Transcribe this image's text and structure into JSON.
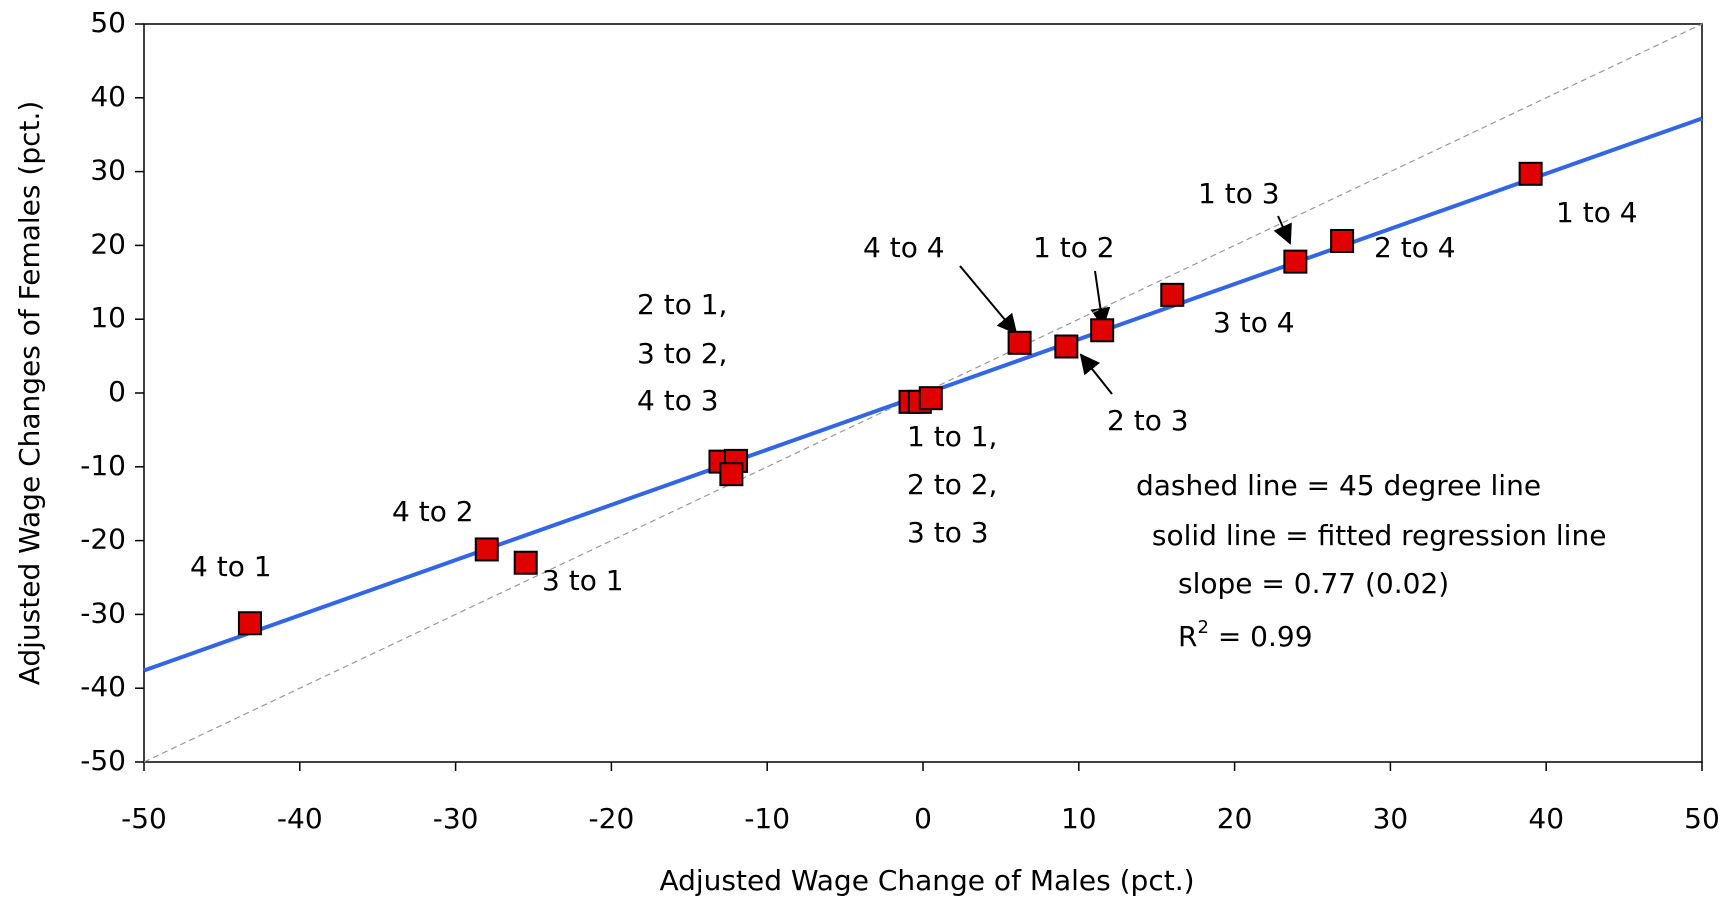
{
  "chart_data": {
    "type": "scatter",
    "x_label": "Adjusted Wage Change of Males (pct.)",
    "y_label": "Adjusted Wage Changes of Females (pct.)",
    "xlim": [
      -50,
      50
    ],
    "xticks": [
      -50,
      -40,
      -30,
      -20,
      -10,
      0,
      10,
      20,
      30,
      40,
      50
    ],
    "ylim": [
      -50,
      50
    ],
    "yticks": [
      -50,
      -40,
      -30,
      -20,
      -10,
      0,
      10,
      20,
      30,
      40,
      50
    ],
    "series": [
      {
        "color": "#e00000",
        "x": [
          -43.2,
          -28,
          -25.5,
          -13,
          -12,
          -12.3,
          -0.8,
          -0.2,
          0.5,
          6.2,
          9.2,
          11.5,
          16,
          23.9,
          26.9,
          39
        ],
        "values": [
          -31.2,
          -21.2,
          -23,
          -9.3,
          -9.2,
          -11,
          -1.2,
          -1.2,
          -0.7,
          6.8,
          6.3,
          8.5,
          13.3,
          17.8,
          20.6,
          29.7
        ]
      }
    ],
    "lines": [
      {
        "color": "#999999",
        "style": "dashed",
        "x": [
          -50,
          50
        ],
        "values": [
          -50,
          50
        ]
      },
      {
        "color": "#3366e6",
        "style": "solid",
        "x": [
          -50,
          50
        ],
        "values": [
          -37.6,
          37.2
        ]
      }
    ],
    "annotations": [
      "4 to 1",
      "4 to 2",
      "3 to 1",
      "2 to 1,",
      "3 to 2,",
      "4 to 3",
      "1 to 1,",
      "2 to 2,",
      "3 to 3",
      "4 to 4",
      "1 to 2",
      "2 to 3",
      "3 to 4",
      "1 to 3",
      "2 to 4",
      "1 to 4",
      "dashed line = 45 degree line",
      " solid line = fitted regression line",
      "slope = 0.77 (0.02)"
    ],
    "r_squared": {
      "base": "R",
      "superscript": "2",
      "text": " = 0.99"
    }
  }
}
